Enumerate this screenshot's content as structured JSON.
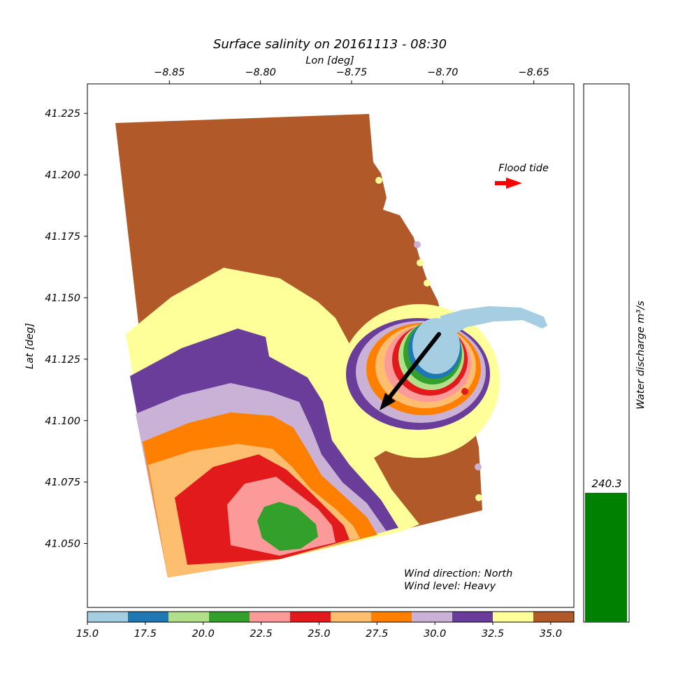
{
  "chart_data": [
    {
      "type": "heatmap",
      "title": "Surface salinity on 20161113 - 08:30",
      "xlabel": "Lon [deg]",
      "ylabel": "Lat [deg]",
      "xlim": [
        -8.895,
        -8.628
      ],
      "ylim": [
        41.024,
        41.237
      ],
      "x_ticks": [
        "−8.85",
        "−8.80",
        "−8.75",
        "−8.70",
        "−8.65"
      ],
      "x_tick_values": [
        -8.85,
        -8.8,
        -8.75,
        -8.7,
        -8.65
      ],
      "y_ticks": [
        "41.225",
        "41.200",
        "41.175",
        "41.150",
        "41.125",
        "41.100",
        "41.075",
        "41.050"
      ],
      "y_tick_values": [
        41.225,
        41.2,
        41.175,
        41.15,
        41.125,
        41.1,
        41.075,
        41.05
      ],
      "colorbar": {
        "min": 15.0,
        "max": 36.0,
        "ticks": [
          "15.0",
          "17.5",
          "20.0",
          "22.5",
          "25.0",
          "27.5",
          "30.0",
          "32.5",
          "35.0"
        ],
        "tick_values": [
          15.0,
          17.5,
          20.0,
          22.5,
          25.0,
          27.5,
          30.0,
          32.5,
          35.0
        ],
        "colors": [
          "#a6cee3",
          "#1f78b4",
          "#b2df8a",
          "#33a02c",
          "#fb9a99",
          "#e31a1c",
          "#fdbf6f",
          "#ff7f00",
          "#cab2d6",
          "#6a3d9a",
          "#ffff99",
          "#b15928"
        ]
      },
      "annotations": {
        "tide": "Flood tide",
        "wind_direction": "Wind direction: North",
        "wind_level": "Wind level: Heavy"
      }
    },
    {
      "type": "bar",
      "ylabel": "Water discharge m³/s",
      "values": [
        240.3
      ],
      "value_label": "240.3",
      "color": "#008000"
    }
  ]
}
